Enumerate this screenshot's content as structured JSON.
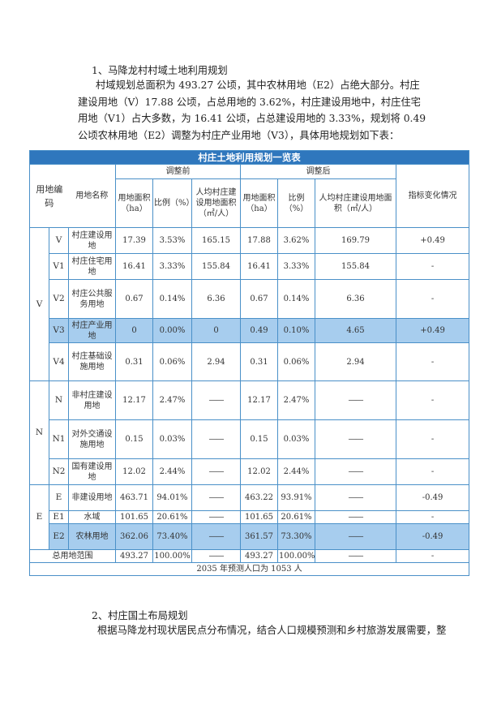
{
  "section1": {
    "heading": "1、马降龙村村域土地利用规划",
    "paragraph": "村域规划总面积为 493.27 公顷，其中农林用地（E2）占绝大部分。村庄建设用地（V）17.88 公顷，占总用地的 3.62%，村庄建设用地中，村庄住宅用地（V1）占大多数，为 16.41 公顷，占总建设用地的 3.33%，规划将 0.49 公顷农林用地（E2）调整为村庄产业用地（V3），具体用地规划如下表："
  },
  "table": {
    "caption": "村庄土地利用规划一览表",
    "headers": {
      "code": "用地编码",
      "name": "用地名称",
      "before": "调整前",
      "after": "调整后",
      "area": "用地面积（ha）",
      "ratio": "比例（%）",
      "percap_before": "人均村庄建设用地面积（㎡/人）",
      "percap_after": "人均村庄建设用地面积（㎡/人）",
      "change": "指标变化情况"
    },
    "groups": {
      "V": "V",
      "N": "N",
      "E": "E"
    },
    "rows": [
      {
        "code": "V",
        "name": "村庄建设用地",
        "a1": "17.39",
        "r1": "3.53%",
        "p1": "165.15",
        "a2": "17.88",
        "r2": "3.62%",
        "p2": "169.79",
        "chg": "+0.49"
      },
      {
        "code": "V1",
        "name": "村庄住宅用地",
        "a1": "16.41",
        "r1": "3.33%",
        "p1": "155.84",
        "a2": "16.41",
        "r2": "3.33%",
        "p2": "155.84",
        "chg": "-"
      },
      {
        "code": "V2",
        "name": "村庄公共服务用地",
        "a1": "0.67",
        "r1": "0.14%",
        "p1": "6.36",
        "a2": "0.67",
        "r2": "0.14%",
        "p2": "6.36",
        "chg": "-"
      },
      {
        "code": "V3",
        "name": "村庄产业用地",
        "a1": "0",
        "r1": "0.00%",
        "p1": "0",
        "a2": "0.49",
        "r2": "0.10%",
        "p2": "4.65",
        "chg": "+0.49"
      },
      {
        "code": "V4",
        "name": "村庄基础设施用地",
        "a1": "0.31",
        "r1": "0.06%",
        "p1": "2.94",
        "a2": "0.31",
        "r2": "0.06%",
        "p2": "2.94",
        "chg": "-"
      },
      {
        "code": "N",
        "name": "非村庄建设用地",
        "a1": "12.17",
        "r1": "2.47%",
        "p1": "——",
        "a2": "12.17",
        "r2": "2.47%",
        "p2": "——",
        "chg": "-"
      },
      {
        "code": "N1",
        "name": "对外交通设施用地",
        "a1": "0.15",
        "r1": "0.03%",
        "p1": "——",
        "a2": "0.15",
        "r2": "0.03%",
        "p2": "——",
        "chg": "-"
      },
      {
        "code": "N2",
        "name": "国有建设用地",
        "a1": "12.02",
        "r1": "2.44%",
        "p1": "——",
        "a2": "12.02",
        "r2": "2.44%",
        "p2": "——",
        "chg": "-"
      },
      {
        "code": "E",
        "name": "非建设用地",
        "a1": "463.71",
        "r1": "94.01%",
        "p1": "——",
        "a2": "463.22",
        "r2": "93.91%",
        "p2": "——",
        "chg": "-0.49"
      },
      {
        "code": "E1",
        "name": "水域",
        "a1": "101.65",
        "r1": "20.61%",
        "p1": "——",
        "a2": "101.65",
        "r2": "20.61%",
        "p2": "——",
        "chg": "-"
      },
      {
        "code": "E2",
        "name": "农林用地",
        "a1": "362.06",
        "r1": "73.40%",
        "p1": "——",
        "a2": "361.57",
        "r2": "73.30%",
        "p2": "——",
        "chg": "-0.49"
      }
    ],
    "total": {
      "name": "总用地范围",
      "a1": "493.27",
      "r1": "100.00%",
      "p1": "——",
      "a2": "493.27",
      "r2": "100.00%",
      "p2": "——",
      "chg": "-"
    },
    "note": "2035 年预测人口为 1053 人",
    "highlight_color": "#a7cdee",
    "caption_color": "#2f77bd"
  },
  "section2": {
    "heading": "2、村庄国土布局规划",
    "paragraph": "根据马降龙村现状居民点分布情况，结合人口规模预测和乡村旅游发展需要，整"
  }
}
